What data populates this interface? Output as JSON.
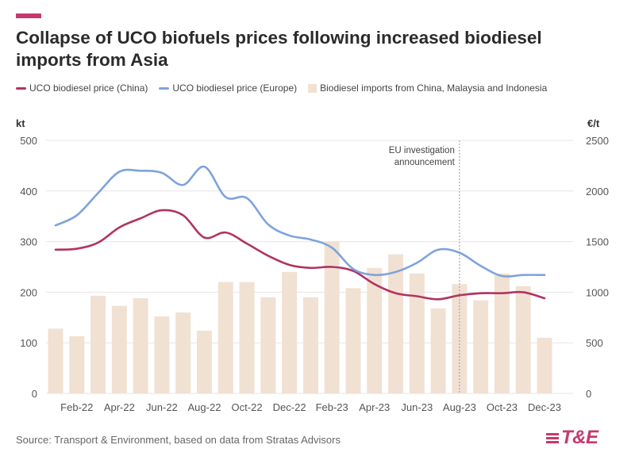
{
  "title": "Collapse of UCO biofuels prices following increased biodiesel imports from Asia",
  "source": "Source: Transport & Environment, based on data from Stratas Advisors",
  "logo_text": "T&E",
  "colors": {
    "accent": "#c43a6e",
    "china": "#b03462",
    "europe": "#7ea3dc",
    "imports": "#f1e1d3",
    "grid": "#e6e6e6",
    "annotation_line": "#999999"
  },
  "chart_data": {
    "type": "bar+line",
    "title": "Collapse of UCO biofuels prices following increased biodiesel imports from Asia",
    "left_axis_unit": "kt",
    "right_axis_unit": "€/t",
    "left_ylim": [
      0,
      500
    ],
    "right_ylim": [
      0,
      2500
    ],
    "left_ticks": [
      "0",
      "100",
      "200",
      "300",
      "400",
      "500"
    ],
    "right_ticks": [
      "0",
      "500",
      "1000",
      "1500",
      "2000",
      "2500"
    ],
    "x_tick_labels": [
      "Feb-22",
      "Apr-22",
      "Jun-22",
      "Aug-22",
      "Oct-22",
      "Dec-22",
      "Feb-23",
      "Apr-23",
      "Jun-23",
      "Aug-23",
      "Oct-23",
      "Dec-23"
    ],
    "categories": [
      "Jan-22",
      "Feb-22",
      "Mar-22",
      "Apr-22",
      "May-22",
      "Jun-22",
      "Jul-22",
      "Aug-22",
      "Sep-22",
      "Oct-22",
      "Nov-22",
      "Dec-22",
      "Jan-23",
      "Feb-23",
      "Mar-23",
      "Apr-23",
      "May-23",
      "Jun-23",
      "Jul-23",
      "Aug-23",
      "Sep-23",
      "Oct-23",
      "Nov-23",
      "Dec-23"
    ],
    "grid": true,
    "legend_position": "top",
    "series": [
      {
        "name": "UCO biodiesel price (China)",
        "kind": "line",
        "axis": "right",
        "values": [
          1420,
          1430,
          1490,
          1640,
          1730,
          1810,
          1760,
          1540,
          1590,
          1480,
          1360,
          1270,
          1240,
          1250,
          1210,
          1080,
          990,
          960,
          930,
          970,
          990,
          990,
          1000,
          940
        ]
      },
      {
        "name": "UCO biodiesel price (Europe)",
        "kind": "line",
        "axis": "right",
        "values": [
          1660,
          1760,
          1980,
          2190,
          2200,
          2180,
          2060,
          2240,
          1940,
          1930,
          1670,
          1560,
          1520,
          1440,
          1230,
          1170,
          1200,
          1290,
          1420,
          1390,
          1260,
          1160,
          1170,
          1170
        ]
      },
      {
        "name": "Biodiesel imports from China, Malaysia and Indonesia",
        "kind": "bar",
        "axis": "left",
        "values": [
          128,
          113,
          193,
          173,
          188,
          152,
          160,
          124,
          220,
          220,
          190,
          240,
          190,
          300,
          208,
          248,
          275,
          237,
          168,
          216,
          184,
          237,
          212,
          110
        ]
      }
    ],
    "annotations": [
      {
        "text": "EU investigation announcement",
        "lines": [
          "EU investigation",
          "announcement"
        ],
        "x": "Aug-23"
      }
    ]
  }
}
